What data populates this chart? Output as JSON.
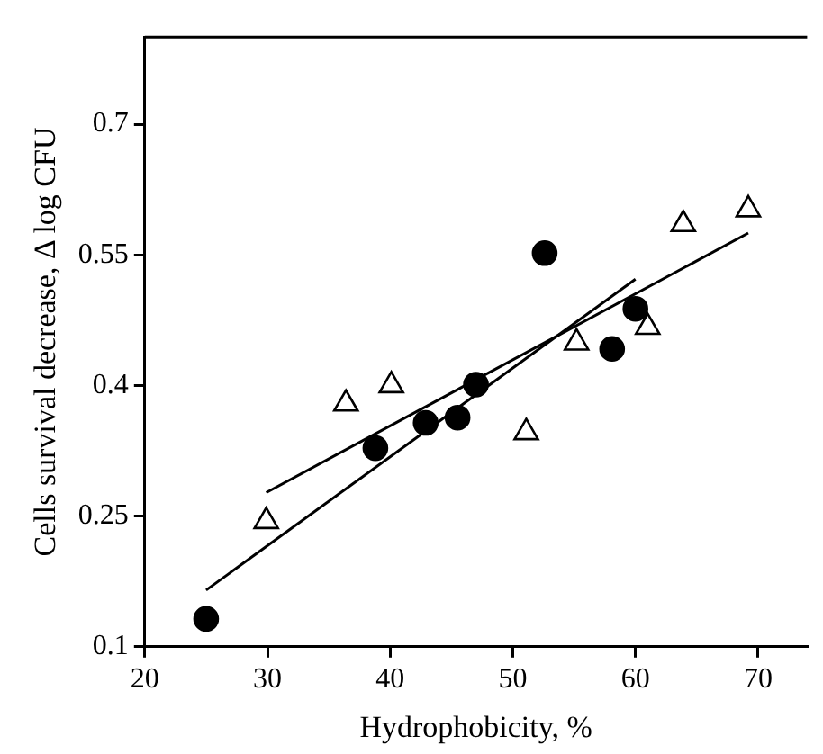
{
  "chart_data": {
    "type": "scatter",
    "xlabel": "Hydrophobicity, %",
    "ylabel": "Cells survival decrease, Δ log CFU",
    "xlim": [
      20,
      74
    ],
    "xticks": [
      20,
      30,
      40,
      50,
      60,
      70
    ],
    "ylim": [
      0.1,
      0.8
    ],
    "yticks": [
      0.1,
      0.25,
      0.4,
      0.55,
      0.7
    ],
    "grid": false,
    "legend": false,
    "series": [
      {
        "marker": "circle",
        "color": "#000000",
        "x": [
          25.0,
          38.8,
          42.9,
          45.5,
          47.0,
          52.6,
          58.1,
          60.0
        ],
        "values": [
          0.132,
          0.328,
          0.357,
          0.363,
          0.401,
          0.552,
          0.442,
          0.488
        ]
      },
      {
        "marker": "triangle",
        "color": "#000000",
        "x": [
          29.9,
          36.4,
          40.1,
          51.1,
          55.2,
          61.0,
          63.9,
          69.2
        ],
        "values": [
          0.244,
          0.379,
          0.4,
          0.346,
          0.449,
          0.467,
          0.585,
          0.602
        ]
      },
      {
        "type": "line",
        "marker": "none",
        "color": "#000000",
        "x": [
          25.0,
          60.0
        ],
        "values": [
          0.165,
          0.522
        ]
      },
      {
        "type": "line",
        "marker": "none",
        "color": "#000000",
        "x": [
          29.9,
          69.2
        ],
        "values": [
          0.277,
          0.575
        ]
      }
    ]
  }
}
